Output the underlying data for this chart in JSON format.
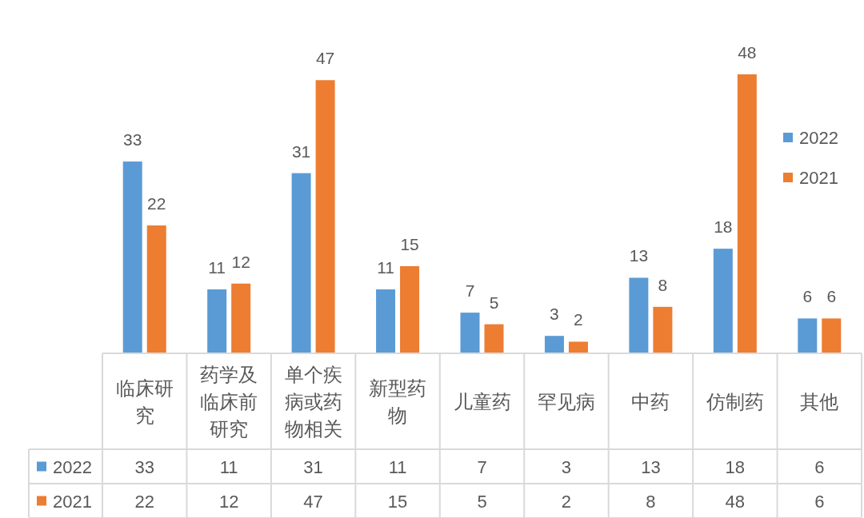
{
  "chart_data": {
    "type": "bar",
    "categories": [
      "临床研究",
      "药学及临床前研究",
      "单个疾病或药物相关",
      "新型药物",
      "儿童药",
      "罕见病",
      "中药",
      "仿制药",
      "其他"
    ],
    "series": [
      {
        "name": "2022",
        "color": "#5b9bd5",
        "values": [
          33,
          11,
          31,
          11,
          7,
          3,
          13,
          18,
          6
        ],
        "value_labels": [
          "33",
          "11",
          "31",
          "11",
          "7",
          "3",
          "13",
          "18",
          "6"
        ]
      },
      {
        "name": "2021",
        "color": "#ed7d31",
        "values": [
          22,
          12,
          47,
          15,
          5,
          2,
          8,
          48,
          6
        ],
        "value_labels": [
          "22",
          "12",
          "47",
          "15",
          "5",
          "2",
          "8",
          "48",
          "6"
        ]
      }
    ],
    "data_labels": true,
    "legend": "right"
  }
}
